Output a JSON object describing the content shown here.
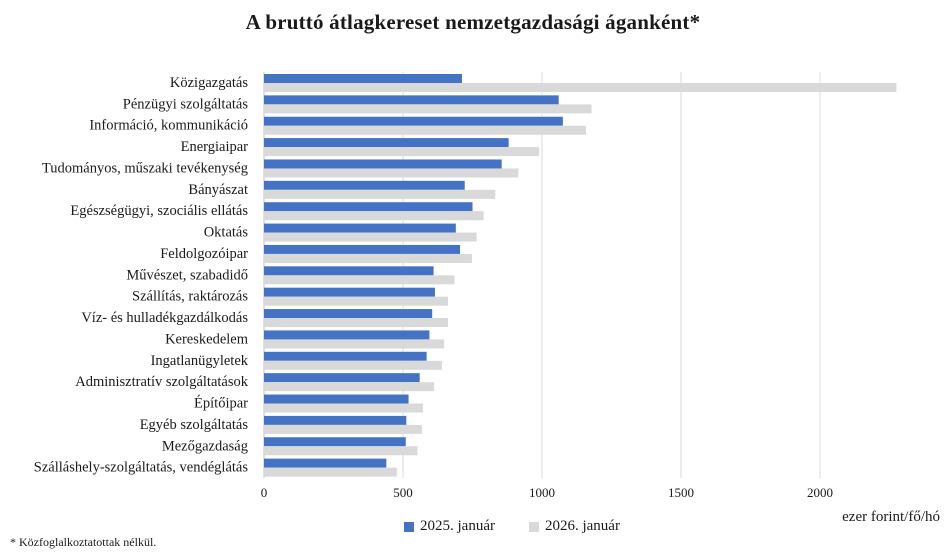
{
  "chart_data": {
    "type": "bar",
    "orientation": "horizontal",
    "title": "A bruttó átlagkereset nemzetgazdasági áganként*",
    "categories": [
      "Közigazgatás",
      "Pénzügyi szolgáltatás",
      "Információ, kommunikáció",
      "Energiaipar",
      "Tudományos, műszaki tevékenység",
      "Bányászat",
      "Egészségügyi, szociális ellátás",
      "Oktatás",
      "Feldolgozóipar",
      "Művészet, szabadidő",
      "Szállítás, raktározás",
      "Víz- és hulladékgazdálkodás",
      "Kereskedelem",
      "Ingatlanügyletek",
      "Adminisztratív szolgáltatások",
      "Építőipar",
      "Egyéb szolgáltatás",
      "Mezőgazdaság",
      "Szálláshely-szolgáltatás, vendéglátás"
    ],
    "series": [
      {
        "name": "2025. január",
        "color": "#4472c4",
        "values": [
          712,
          1060,
          1075,
          880,
          855,
          722,
          750,
          690,
          705,
          610,
          615,
          605,
          595,
          585,
          560,
          520,
          512,
          510,
          440
        ]
      },
      {
        "name": "2026. január",
        "color": "#d9d9d9",
        "values": [
          2275,
          1178,
          1158,
          990,
          915,
          832,
          790,
          765,
          748,
          685,
          662,
          662,
          648,
          640,
          612,
          572,
          568,
          552,
          478
        ]
      }
    ],
    "xlim": [
      0,
      2300
    ],
    "xticks": [
      0,
      500,
      1000,
      1500,
      2000
    ],
    "xlabel": "ezer forint/fő/hó",
    "ylabel": "",
    "grid": "vertical",
    "legend_position": "bottom",
    "footnote": "* Közfoglalkoztatottak nélkül."
  }
}
